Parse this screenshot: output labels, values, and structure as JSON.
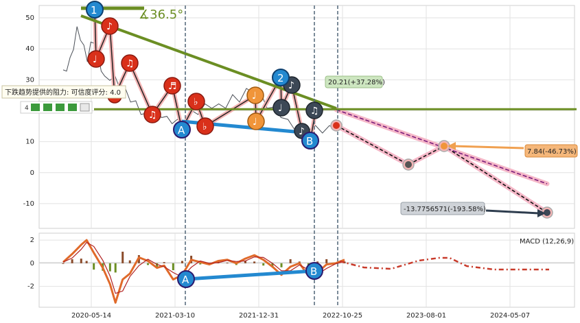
{
  "chart_data": {
    "type": "line",
    "main_panel": {
      "y_ticks": [
        50,
        40,
        30,
        20,
        10,
        0,
        -10
      ],
      "ylim": [
        -18,
        54
      ],
      "angle_label": "∡36.5°",
      "upper_annotation": "20.21(+37.28%)",
      "mid_annotation": "7.84(-46.73%)",
      "lower_annotation": "-13.7756571(-193.58%)",
      "tooltip_text": "下跌趋势提供的阻力: 可信度评分: 4.0",
      "tooltip_rating": "4",
      "support_level": 20.5,
      "markers": {
        "wave_1": "1",
        "wave_2": "2",
        "point_a": "A",
        "point_b": "B"
      }
    },
    "macd_panel": {
      "legend": "MACD (12,26,9)",
      "y_ticks": [
        2,
        0,
        -2
      ],
      "ylim": [
        -3.8,
        2.6
      ],
      "point_a": "A",
      "point_b": "B"
    },
    "x_ticks": [
      "2020-05-14",
      "2021-03-10",
      "2021-12-31",
      "2022-10-25",
      "2023-08-01",
      "2024-05-07"
    ],
    "price_series": [
      [
        0,
        32
      ],
      [
        4,
        34
      ],
      [
        8,
        36
      ],
      [
        12,
        41
      ],
      [
        16,
        46
      ],
      [
        20,
        44
      ],
      [
        24,
        40
      ],
      [
        28,
        37
      ],
      [
        32,
        41
      ],
      [
        36,
        43
      ],
      [
        40,
        38
      ],
      [
        44,
        34
      ],
      [
        48,
        30
      ],
      [
        54,
        31
      ],
      [
        60,
        30
      ],
      [
        66,
        28
      ],
      [
        72,
        26
      ],
      [
        78,
        24
      ],
      [
        84,
        22
      ],
      [
        90,
        20
      ],
      [
        96,
        18
      ],
      [
        102,
        20
      ],
      [
        108,
        18
      ],
      [
        114,
        19
      ],
      [
        120,
        17
      ],
      [
        126,
        17
      ],
      [
        132,
        16
      ],
      [
        140,
        17
      ],
      [
        148,
        19
      ],
      [
        156,
        20
      ],
      [
        164,
        21
      ],
      [
        172,
        22
      ],
      [
        180,
        21
      ],
      [
        188,
        22
      ],
      [
        196,
        24
      ],
      [
        204,
        24
      ],
      [
        212,
        26
      ],
      [
        220,
        27
      ],
      [
        228,
        25
      ],
      [
        236,
        22
      ],
      [
        244,
        20
      ],
      [
        252,
        19
      ],
      [
        260,
        16
      ],
      [
        268,
        15
      ],
      [
        276,
        14
      ],
      [
        284,
        15
      ],
      [
        292,
        14
      ],
      [
        300,
        14
      ],
      [
        308,
        14
      ],
      [
        316,
        15
      ]
    ],
    "macd_series": [
      [
        0,
        0.1
      ],
      [
        10,
        0.8
      ],
      [
        20,
        1.6
      ],
      [
        26,
        2.0
      ],
      [
        34,
        0.9
      ],
      [
        44,
        -0.4
      ],
      [
        52,
        -1.8
      ],
      [
        58,
        -3.4
      ],
      [
        66,
        -1.4
      ],
      [
        74,
        -0.9
      ],
      [
        84,
        0.5
      ],
      [
        94,
        0.2
      ],
      [
        104,
        -0.4
      ],
      [
        112,
        -0.2
      ],
      [
        122,
        -1.4
      ],
      [
        132,
        -1.0
      ],
      [
        142,
        0.3
      ],
      [
        152,
        0.1
      ],
      [
        162,
        -0.1
      ],
      [
        172,
        0.2
      ],
      [
        182,
        0.3
      ],
      [
        192,
        0.0
      ],
      [
        202,
        0.4
      ],
      [
        212,
        0.7
      ],
      [
        222,
        0.3
      ],
      [
        232,
        -0.3
      ],
      [
        242,
        -1.0
      ],
      [
        252,
        -0.3
      ],
      [
        262,
        0.0
      ],
      [
        272,
        -1.1
      ],
      [
        282,
        -0.8
      ],
      [
        292,
        -0.1
      ],
      [
        302,
        0.0
      ],
      [
        312,
        0.3
      ]
    ]
  }
}
